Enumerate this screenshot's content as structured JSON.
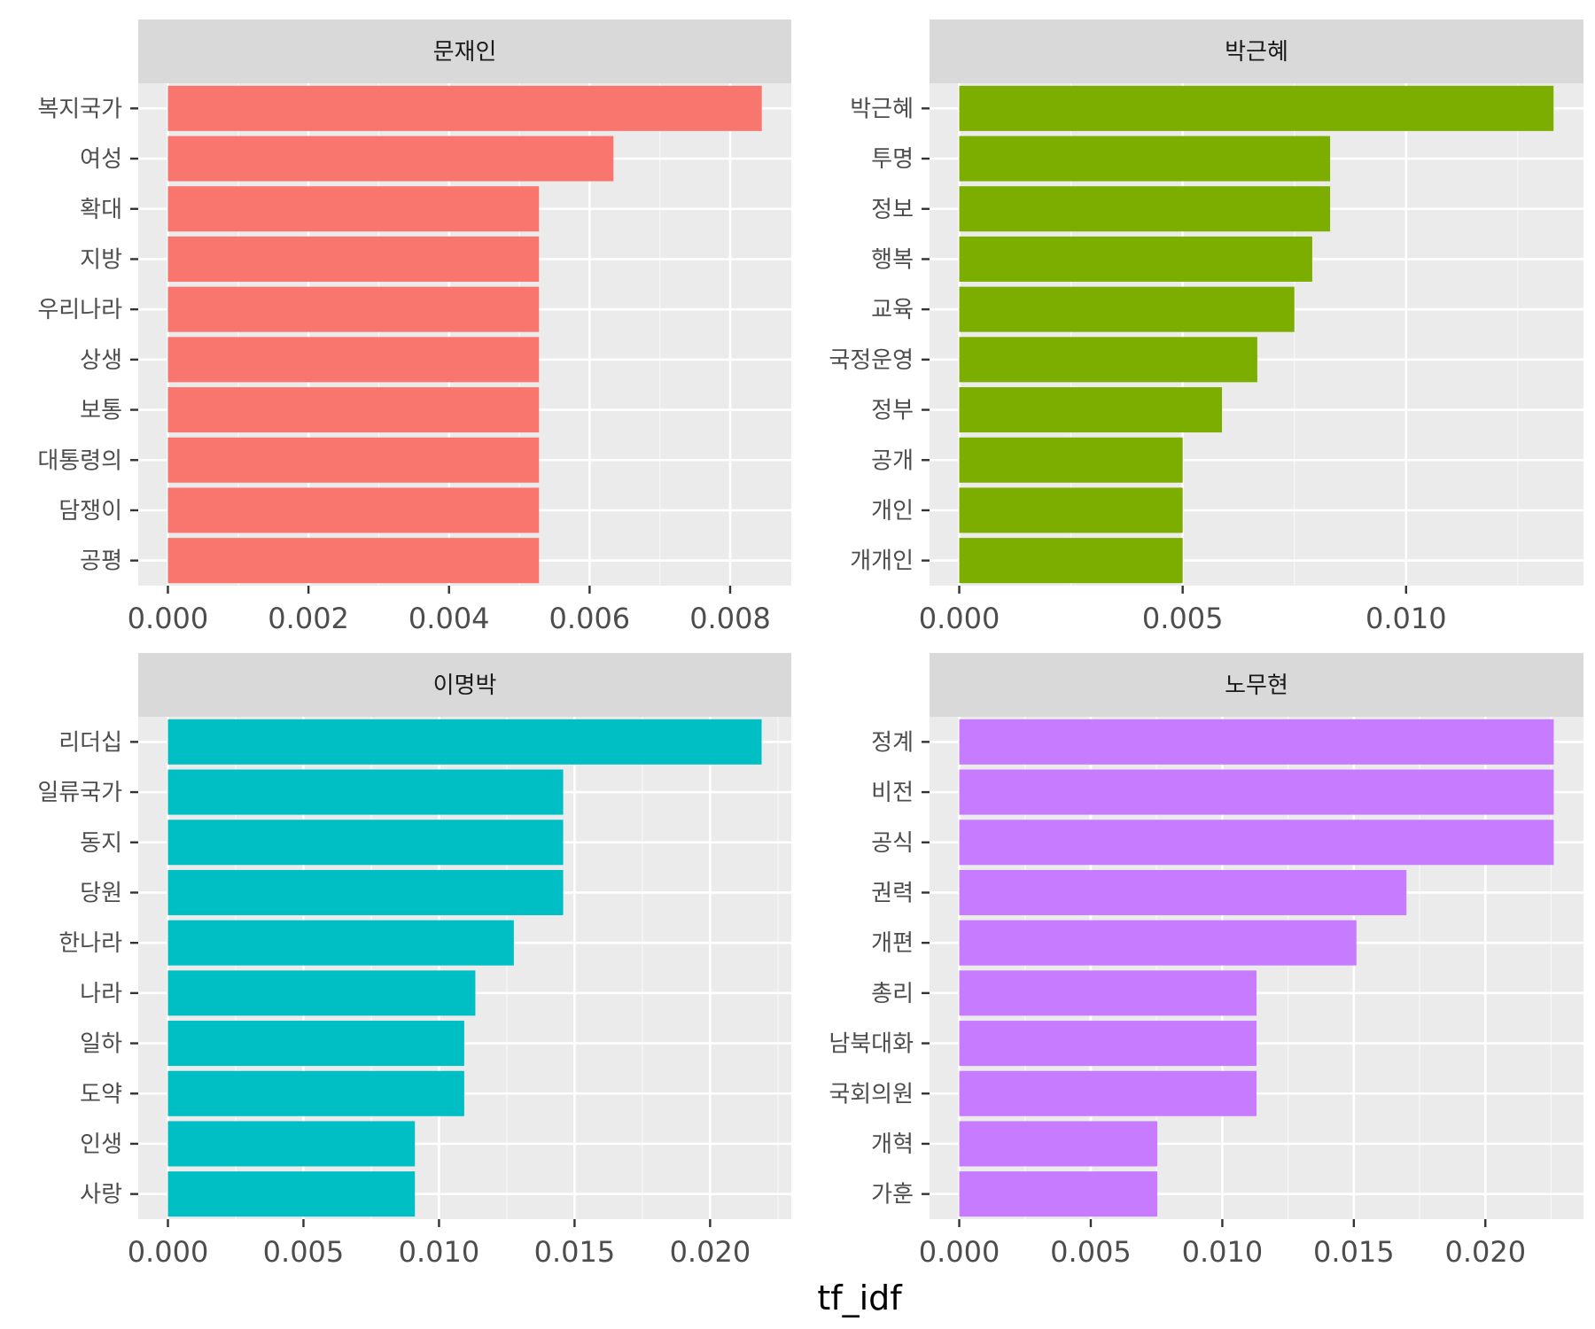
{
  "xlabel": "tf_idf",
  "chart_data": [
    {
      "type": "bar",
      "orientation": "horizontal",
      "title": "문재인",
      "color": "#F8766D",
      "categories": [
        "복지국가",
        "여성",
        "확대",
        "지방",
        "우리나라",
        "상생",
        "보통",
        "대통령의",
        "담쟁이",
        "공평"
      ],
      "values": [
        0.00845,
        0.00634,
        0.00528,
        0.00528,
        0.00528,
        0.00528,
        0.00528,
        0.00528,
        0.00528,
        0.00528
      ],
      "xlim": [
        -0.000422,
        0.00887
      ],
      "xticks": [
        0.0,
        0.002,
        0.004,
        0.006,
        0.008
      ],
      "xtick_labels": [
        "0.000",
        "0.002",
        "0.004",
        "0.006",
        "0.008"
      ],
      "grid": true
    },
    {
      "type": "bar",
      "orientation": "horizontal",
      "title": "박근혜",
      "color": "#7CAE00",
      "categories": [
        "박근혜",
        "투명",
        "정보",
        "행복",
        "교육",
        "국정운영",
        "정부",
        "공개",
        "개인",
        "개개인"
      ],
      "values": [
        0.0133,
        0.0083,
        0.0083,
        0.0079,
        0.0075,
        0.00667,
        0.00588,
        0.005,
        0.005,
        0.005
      ],
      "xlim": [
        -0.000665,
        0.01397
      ],
      "xticks": [
        0.0,
        0.005,
        0.01
      ],
      "xtick_labels": [
        "0.000",
        "0.005",
        "0.010"
      ],
      "grid": true
    },
    {
      "type": "bar",
      "orientation": "horizontal",
      "title": "이명박",
      "color": "#00BFC4",
      "categories": [
        "리더십",
        "일류국가",
        "동지",
        "당원",
        "한나라",
        "나라",
        "일하",
        "도약",
        "인생",
        "사랑"
      ],
      "values": [
        0.0219,
        0.01458,
        0.01458,
        0.01458,
        0.01276,
        0.01134,
        0.01093,
        0.01093,
        0.00911,
        0.00911
      ],
      "xlim": [
        -0.001095,
        0.022995
      ],
      "xticks": [
        0.0,
        0.005,
        0.01,
        0.015,
        0.02
      ],
      "xtick_labels": [
        "0.000",
        "0.005",
        "0.010",
        "0.015",
        "0.020"
      ],
      "grid": true
    },
    {
      "type": "bar",
      "orientation": "horizontal",
      "title": "노무현",
      "color": "#C77CFF",
      "categories": [
        "정계",
        "비전",
        "공식",
        "권력",
        "개편",
        "총리",
        "남북대화",
        "국회의원",
        "개혁",
        "가훈"
      ],
      "values": [
        0.0226,
        0.0226,
        0.0226,
        0.017,
        0.0151,
        0.0113,
        0.0113,
        0.0113,
        0.00753,
        0.00753
      ],
      "xlim": [
        -0.00113,
        0.02373
      ],
      "xticks": [
        0.0,
        0.005,
        0.01,
        0.015,
        0.02
      ],
      "xtick_labels": [
        "0.000",
        "0.005",
        "0.010",
        "0.015",
        "0.020"
      ],
      "grid": true
    }
  ]
}
